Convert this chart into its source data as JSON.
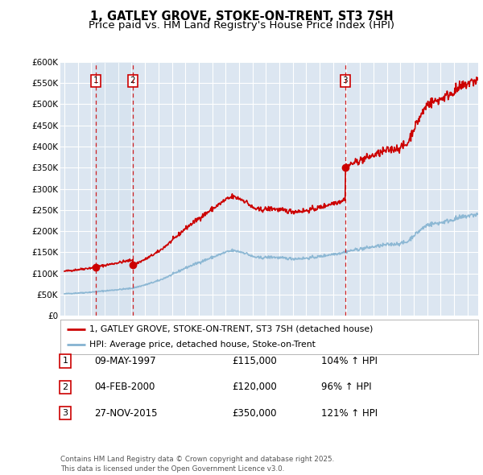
{
  "title": "1, GATLEY GROVE, STOKE-ON-TRENT, ST3 7SH",
  "subtitle": "Price paid vs. HM Land Registry's House Price Index (HPI)",
  "ylim": [
    0,
    600000
  ],
  "yticks": [
    0,
    50000,
    100000,
    150000,
    200000,
    250000,
    300000,
    350000,
    400000,
    450000,
    500000,
    550000,
    600000
  ],
  "ytick_labels": [
    "£0",
    "£50K",
    "£100K",
    "£150K",
    "£200K",
    "£250K",
    "£300K",
    "£350K",
    "£400K",
    "£450K",
    "£500K",
    "£550K",
    "£600K"
  ],
  "xlim_start": 1994.7,
  "xlim_end": 2025.8,
  "bg_color": "#dce6f1",
  "grid_color": "#ffffff",
  "red_line_color": "#cc0000",
  "blue_line_color": "#85b3d1",
  "sale_marker_color": "#cc0000",
  "sale_vline_color": "#cc0000",
  "sale_box_color": "#cc0000",
  "sales": [
    {
      "num": 1,
      "date": "09-MAY-1997",
      "price": 115000,
      "year": 1997.36,
      "hpi_pct": "104%",
      "direction": "↑"
    },
    {
      "num": 2,
      "date": "04-FEB-2000",
      "price": 120000,
      "year": 2000.09,
      "hpi_pct": "96%",
      "direction": "↑"
    },
    {
      "num": 3,
      "date": "27-NOV-2015",
      "price": 350000,
      "year": 2015.91,
      "hpi_pct": "121%",
      "direction": "↑"
    }
  ],
  "legend_line1": "1, GATLEY GROVE, STOKE-ON-TRENT, ST3 7SH (detached house)",
  "legend_line2": "HPI: Average price, detached house, Stoke-on-Trent",
  "footnote": "Contains HM Land Registry data © Crown copyright and database right 2025.\nThis data is licensed under the Open Government Licence v3.0.",
  "title_fontsize": 10.5,
  "subtitle_fontsize": 9.5,
  "tick_fontsize": 7.5,
  "label_fontsize": 8
}
